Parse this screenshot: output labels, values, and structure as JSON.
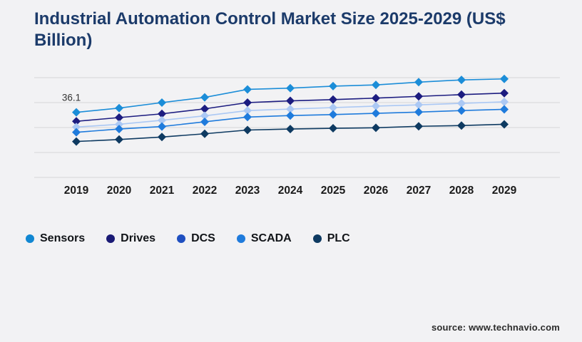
{
  "title": "Industrial Automation Control Market Size 2025-2029 (US$ Billion)",
  "source": "source: www.technavio.com",
  "colors": {
    "background": "#f2f2f4",
    "title_navy": "#1c3b6a",
    "gridline": "#d6d6d8",
    "axis_label": "#1a1a1a",
    "annotation_text": "#333333"
  },
  "chart_data": {
    "type": "line",
    "x": [
      2019,
      2020,
      2021,
      2022,
      2023,
      2024,
      2025,
      2026,
      2027,
      2028,
      2029
    ],
    "series": [
      {
        "name": "Sensors",
        "line_color": "#1b8dd8",
        "legend_color": "#1187d2",
        "values": [
          36.1,
          37.8,
          40.0,
          42.1,
          45.3,
          45.8,
          46.6,
          47.1,
          48.2,
          49.1,
          49.5
        ]
      },
      {
        "name": "Drives",
        "line_color": "#1c1c80",
        "legend_color": "#1a1a75",
        "values": [
          32.5,
          34.0,
          35.5,
          37.5,
          40.0,
          40.7,
          41.2,
          41.8,
          42.5,
          43.2,
          43.8
        ]
      },
      {
        "name": "DCS",
        "line_color": "#abc8f4",
        "legend_color": "#1f4fc0",
        "values": [
          30.2,
          31.3,
          32.9,
          34.7,
          36.8,
          37.4,
          38.0,
          38.6,
          39.1,
          39.7,
          40.3
        ]
      },
      {
        "name": "SCADA",
        "line_color": "#1f7bdc",
        "legend_color": "#1f7bdc",
        "values": [
          28.1,
          29.4,
          30.4,
          32.3,
          34.2,
          34.8,
          35.2,
          35.7,
          36.2,
          36.8,
          37.3
        ]
      },
      {
        "name": "PLC",
        "line_color": "#0e3a61",
        "legend_color": "#0e3a61",
        "values": [
          24.4,
          25.2,
          26.2,
          27.5,
          29.0,
          29.4,
          29.7,
          29.9,
          30.5,
          30.8,
          31.3
        ]
      }
    ],
    "annotations": [
      {
        "series": "Sensors",
        "x": 2019,
        "text": "36.1"
      }
    ],
    "ylim": [
      10,
      50
    ],
    "ytick_step": 10,
    "y_axis_labels_visible": false,
    "grid": true,
    "marker": "diamond",
    "legend_position": "bottom-left"
  }
}
